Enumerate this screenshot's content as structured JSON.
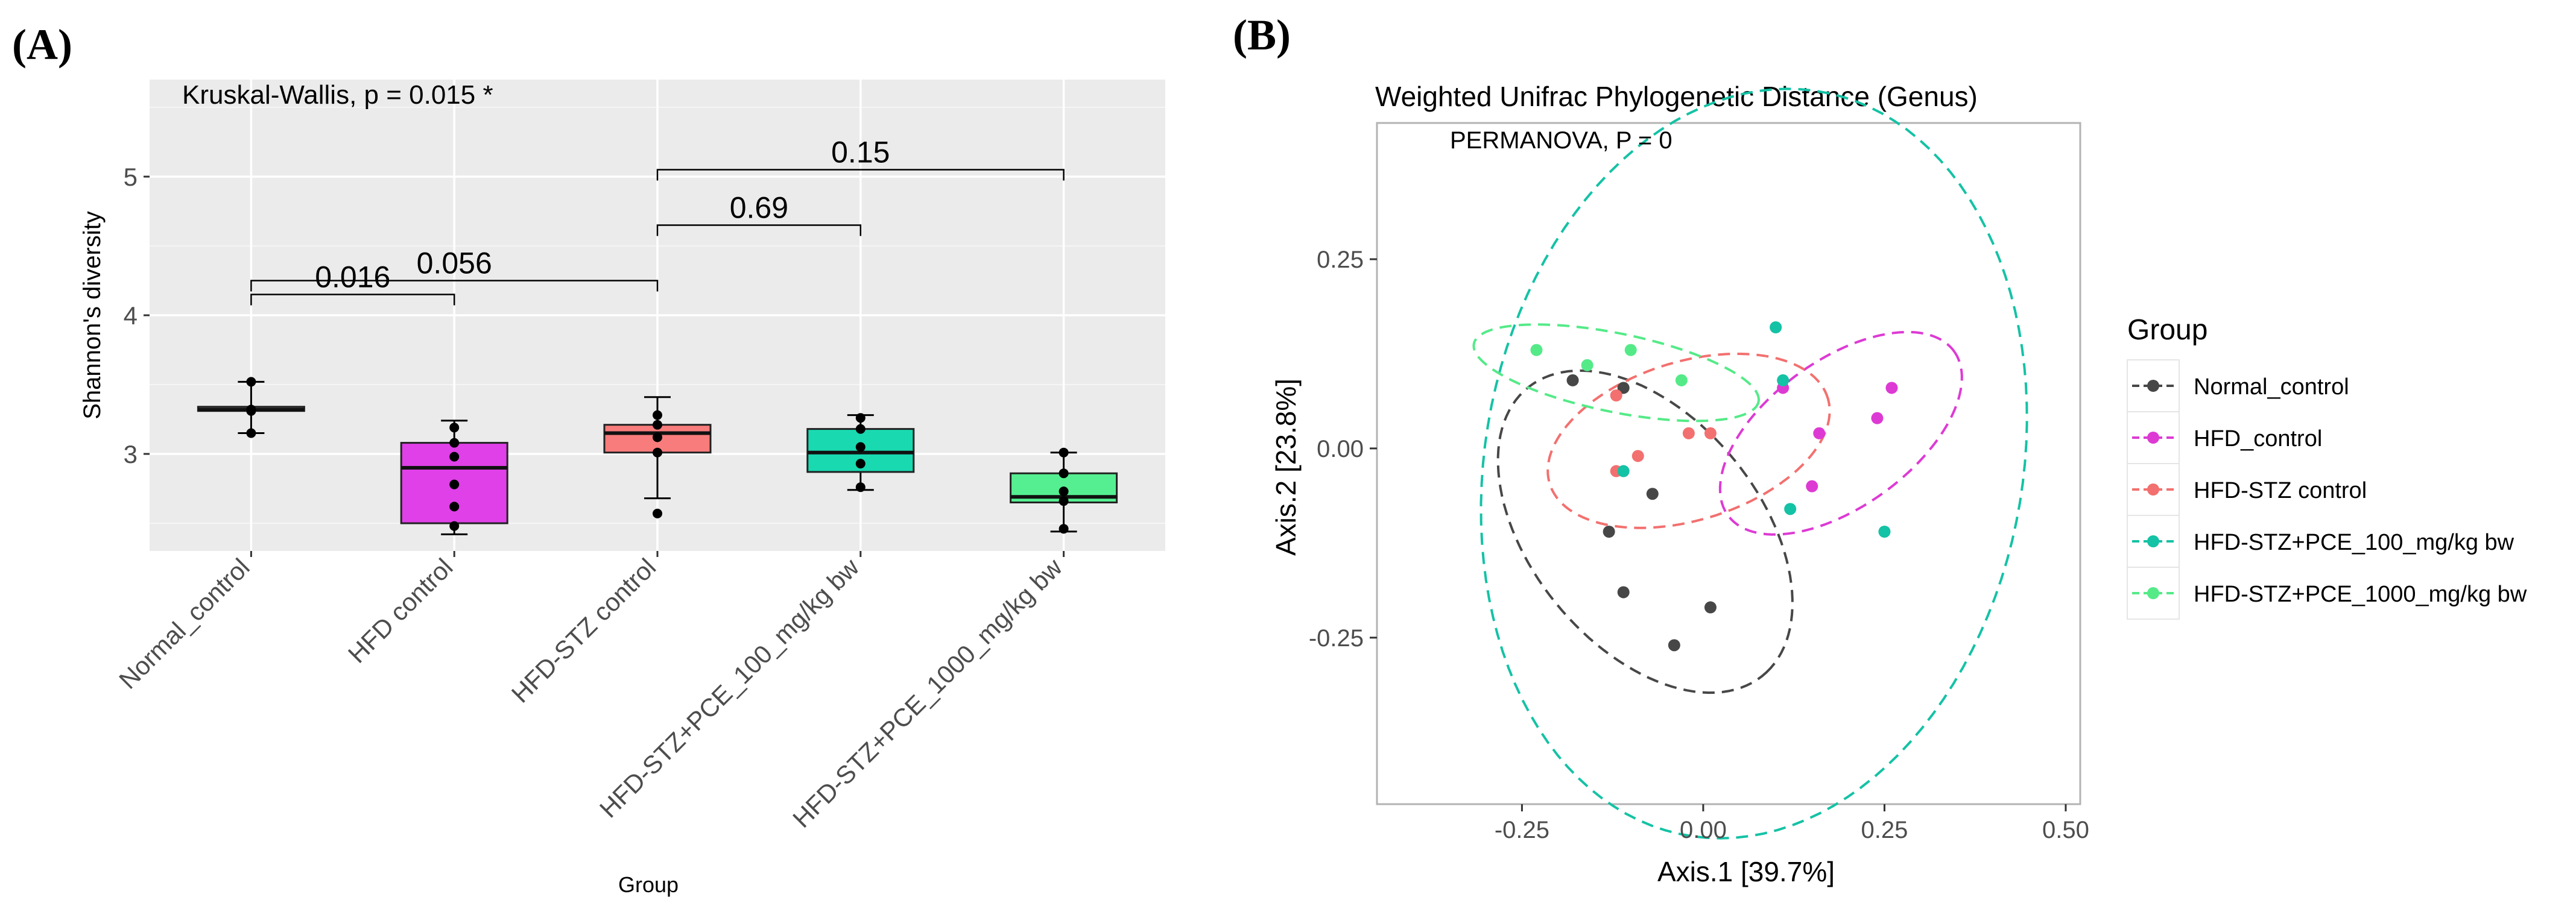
{
  "figure": {
    "panel_a_label": "(A)",
    "panel_b_label": "(B)"
  },
  "chart_data": [
    {
      "type": "box",
      "panel": "A",
      "title": "",
      "xlabel": "Group",
      "ylabel": "Shannon's diversity",
      "ylim": [
        2.3,
        5.7
      ],
      "yticks": [
        3,
        4,
        5
      ],
      "grid": true,
      "annotation": "Kruskal-Wallis, p =  0.015 *",
      "categories": [
        "Normal_control",
        "HFD control",
        "HFD-STZ control",
        "HFD-STZ+PCE_100_mg/kg bw",
        "HFD-STZ+PCE_1000_mg/kg bw"
      ],
      "colors": [
        "#ffffff",
        "#e040e8",
        "#f87c7c",
        "#19d9b0",
        "#55ef92"
      ],
      "boxes": [
        {
          "min": 3.15,
          "q1": 3.31,
          "median": 3.32,
          "q3": 3.34,
          "max": 3.52
        },
        {
          "min": 2.42,
          "q1": 2.5,
          "median": 2.9,
          "q3": 3.08,
          "max": 3.24
        },
        {
          "min": 2.68,
          "q1": 3.01,
          "median": 3.15,
          "q3": 3.21,
          "max": 3.41
        },
        {
          "min": 2.74,
          "q1": 2.87,
          "median": 3.01,
          "q3": 3.18,
          "max": 3.28
        },
        {
          "min": 2.44,
          "q1": 2.65,
          "median": 2.69,
          "q3": 2.86,
          "max": 3.01
        }
      ],
      "points": [
        [
          3.52,
          3.32,
          3.31,
          3.15
        ],
        [
          3.19,
          3.08,
          2.98,
          2.78,
          2.62,
          2.48
        ],
        [
          3.28,
          3.21,
          3.12,
          3.01,
          2.57
        ],
        [
          3.26,
          3.18,
          3.05,
          2.93,
          2.76
        ],
        [
          3.01,
          2.86,
          2.73,
          2.66,
          2.46
        ]
      ],
      "comparisons": [
        {
          "from": 0,
          "to": 1,
          "label": "0.016",
          "y": 4.15
        },
        {
          "from": 0,
          "to": 2,
          "label": "0.056",
          "y": 4.25
        },
        {
          "from": 2,
          "to": 3,
          "label": "0.69",
          "y": 4.65
        },
        {
          "from": 2,
          "to": 4,
          "label": "0.15",
          "y": 5.05
        }
      ]
    },
    {
      "type": "scatter",
      "panel": "B",
      "title": "Weighted Unifrac Phylogenetic Distance (Genus)",
      "xlabel": "Axis.1 [39.7%]",
      "ylabel": "Axis.2 [23.8%]",
      "xlim": [
        -0.45,
        0.52
      ],
      "ylim": [
        -0.47,
        0.43
      ],
      "xticks": [
        "-0.25",
        "0.00",
        "0.25",
        "0.50"
      ],
      "yticks": [
        "-0.25",
        "0.00",
        "0.25"
      ],
      "annotation": "PERMANOVA, P = 0",
      "legend_title": "Group",
      "legend_position": "right",
      "series": [
        {
          "name": "Normal_control",
          "color": "#474747",
          "points": [
            [
              -0.18,
              0.09
            ],
            [
              -0.11,
              0.08
            ],
            [
              -0.07,
              -0.06
            ],
            [
              -0.13,
              -0.11
            ],
            [
              -0.11,
              -0.19
            ],
            [
              0.01,
              -0.21
            ],
            [
              -0.04,
              -0.26
            ]
          ],
          "ellipse": {
            "cx": -0.08,
            "cy": -0.11,
            "rx": 0.25,
            "ry": 0.155,
            "angle": -48
          }
        },
        {
          "name": "HFD_control",
          "color": "#dd3ad4",
          "points": [
            [
              0.26,
              0.08
            ],
            [
              0.11,
              0.08
            ],
            [
              0.24,
              0.04
            ],
            [
              0.16,
              0.02
            ],
            [
              0.15,
              -0.05
            ]
          ],
          "ellipse": {
            "cx": 0.19,
            "cy": 0.02,
            "rx": 0.19,
            "ry": 0.098,
            "angle": 34
          }
        },
        {
          "name": "HFD-STZ control",
          "color": "#f2706f",
          "points": [
            [
              -0.12,
              0.07
            ],
            [
              -0.02,
              0.02
            ],
            [
              0.01,
              0.02
            ],
            [
              -0.09,
              -0.01
            ],
            [
              -0.12,
              -0.03
            ]
          ],
          "ellipse": {
            "cx": -0.02,
            "cy": 0.01,
            "rx": 0.2,
            "ry": 0.105,
            "angle": 16
          }
        },
        {
          "name": "HFD-STZ+PCE_100_mg/kg bw",
          "color": "#14c2a5",
          "points": [
            [
              0.1,
              0.16
            ],
            [
              0.11,
              0.09
            ],
            [
              -0.11,
              -0.03
            ],
            [
              0.12,
              -0.08
            ],
            [
              0.25,
              -0.11
            ]
          ],
          "ellipse": {
            "cx": 0.07,
            "cy": -0.02,
            "rx": 0.5,
            "ry": 0.37,
            "angle": 78
          }
        },
        {
          "name": "HFD-STZ+PCE_1000_mg/kg bw",
          "color": "#55ea88",
          "points": [
            [
              -0.23,
              0.13
            ],
            [
              -0.1,
              0.13
            ],
            [
              -0.16,
              0.11
            ],
            [
              -0.03,
              0.09
            ]
          ],
          "ellipse": {
            "cx": -0.12,
            "cy": 0.1,
            "rx": 0.2,
            "ry": 0.052,
            "angle": -11
          }
        }
      ]
    }
  ]
}
